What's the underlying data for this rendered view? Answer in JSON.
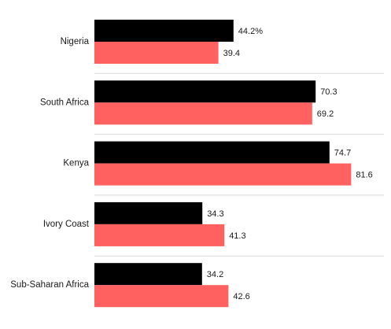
{
  "chart_data": {
    "type": "bar",
    "orientation": "horizontal",
    "categories": [
      "Nigeria",
      "South Africa",
      "Kenya",
      "Ivory Coast",
      "Sub-Saharan Africa"
    ],
    "series": [
      {
        "color": "#000000",
        "values": [
          44.2,
          70.3,
          74.7,
          34.3,
          34.2
        ],
        "labels": [
          "44.2%",
          "70.3",
          "74.7",
          "34.3",
          "34.2"
        ]
      },
      {
        "color": "#ff6161",
        "values": [
          39.4,
          69.2,
          81.6,
          41.3,
          42.6
        ],
        "labels": [
          "39.4",
          "69.2",
          "81.6",
          "41.3",
          "42.6"
        ]
      }
    ],
    "xlim": [
      0,
      100
    ],
    "grid": false,
    "legend": "none"
  }
}
